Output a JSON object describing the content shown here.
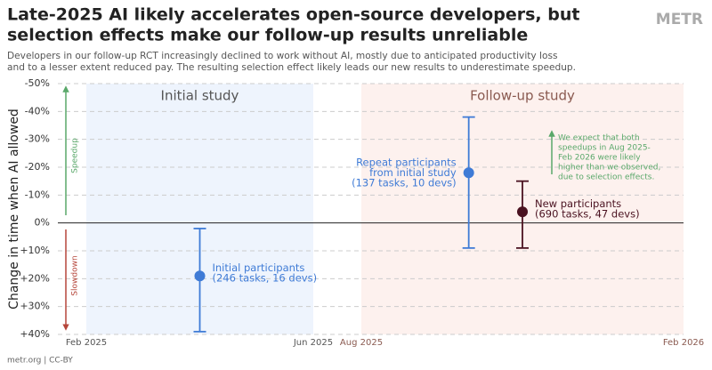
{
  "chart_data": {
    "type": "errorbar",
    "title": [
      "Late-2025 AI likely accelerates open-source developers, but",
      "selection effects make our follow-up results unreliable"
    ],
    "subtitle": [
      "Developers in our follow-up RCT increasingly declined to work without AI, mostly due to anticipated productivity loss",
      "and to a lesser extent reduced pay. The resulting selection effect likely leads our new results to underestimate speedup."
    ],
    "logo": "METR",
    "ylabel": "Change in time when AI allowed",
    "ylim": [
      40,
      -50
    ],
    "yticks": [
      {
        "value": -50,
        "label": "-50%"
      },
      {
        "value": -40,
        "label": "-40%"
      },
      {
        "value": -30,
        "label": "-30%"
      },
      {
        "value": -20,
        "label": "-20%"
      },
      {
        "value": -10,
        "label": "-10%"
      },
      {
        "value": 0,
        "label": "0%"
      },
      {
        "value": 10,
        "label": "+10%"
      },
      {
        "value": 20,
        "label": "+20%"
      },
      {
        "value": 30,
        "label": "+30%"
      },
      {
        "value": 40,
        "label": "+40%"
      }
    ],
    "grid": true,
    "panels": [
      {
        "name": "Initial study",
        "color": "#eef4fd",
        "text_color": "#555555",
        "xticks": [
          {
            "value": "2025-02",
            "label": "Feb 2025"
          },
          {
            "value": "2025-06",
            "label": "Jun 2025"
          }
        ]
      },
      {
        "name": "Follow-up study",
        "color": "#fdf1ee",
        "text_color": "#8a5a50",
        "xticks": [
          {
            "value": "2025-08",
            "label": "Aug 2025"
          },
          {
            "value": "2026-02",
            "label": "Feb 2026"
          }
        ]
      }
    ],
    "direction_labels": [
      {
        "text": "Speedup",
        "color": "#5aa86a"
      },
      {
        "text": "Slowdown",
        "color": "#b5453a"
      }
    ],
    "points": [
      {
        "label": [
          "Initial participants",
          "(246 tasks, 16 devs)"
        ],
        "x": "2025-04",
        "value": 19,
        "ci": [
          2,
          39
        ],
        "color": "#3f7bd6",
        "label_side": "right"
      },
      {
        "label": [
          "Repeat participants",
          "from initial study",
          "(137 tasks, 10 devs)"
        ],
        "x": "2025-10",
        "value": -18,
        "ci": [
          -38,
          9
        ],
        "color": "#3f7bd6",
        "label_side": "left"
      },
      {
        "label": [
          "New participants",
          "(690 tasks, 47 devs)"
        ],
        "x": "2025-11",
        "value": -4,
        "ci": [
          -15,
          9
        ],
        "color": "#4a1220",
        "label_side": "right"
      }
    ],
    "annotation": {
      "lines": [
        "We expect that both",
        "speedups in Aug 2025-",
        "Feb 2026 were likely",
        "higher than we observed,",
        "due to selection effects."
      ],
      "color": "#5aa86a"
    },
    "footer": "metr.org  |  CC-BY"
  }
}
